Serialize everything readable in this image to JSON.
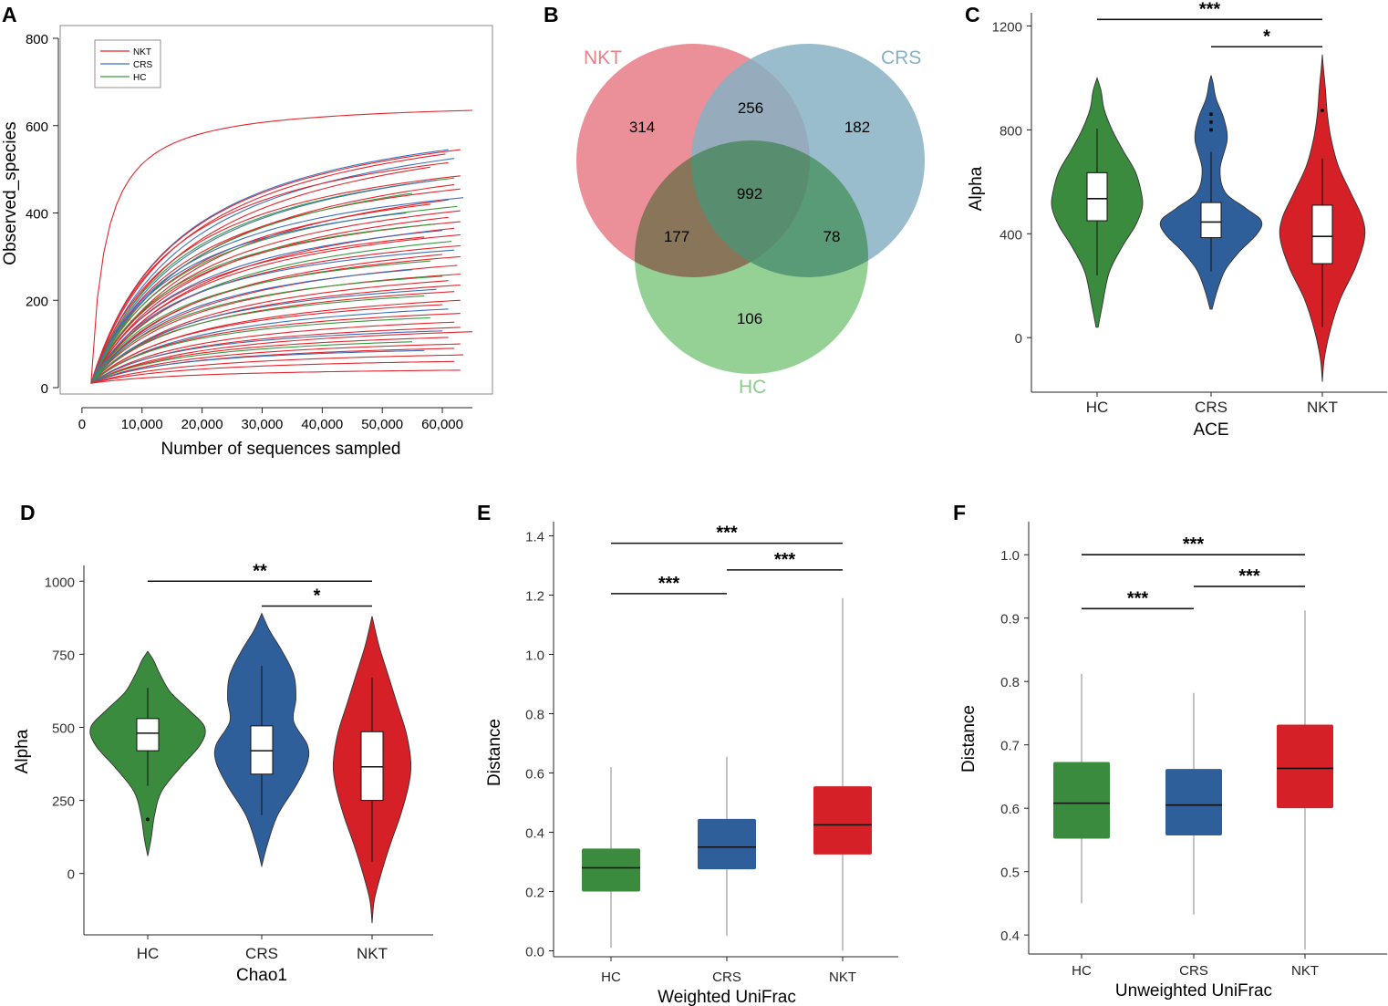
{
  "colors": {
    "HC": "#3a8b3d",
    "CRS": "#2f5f9a",
    "NKT": "#d62027",
    "venn_nkt": "#e8808a",
    "venn_crs": "#87b1c3",
    "venn_hc": "#8acc8a",
    "rare_nkt": "#e3262d",
    "rare_crs": "#3c6fbf",
    "rare_hc": "#3a9a40"
  },
  "chart_data": [
    {
      "panel": "A",
      "type": "line",
      "xlabel": "Number of sequences sampled",
      "ylabel": "Observed_species",
      "xlim": [
        0,
        65000
      ],
      "ylim": [
        0,
        800
      ],
      "xticks": [
        0,
        10000,
        20000,
        30000,
        40000,
        50000,
        60000
      ],
      "xtick_labels": [
        "0",
        "10,000",
        "20,000",
        "30,000",
        "40,000",
        "50,000",
        "60,000"
      ],
      "yticks": [
        0,
        200,
        400,
        600,
        800
      ],
      "ytick_labels": [
        "0",
        "200",
        "400",
        "600",
        "800"
      ],
      "legend": [
        "NKT",
        "CRS",
        "HC"
      ],
      "legend_position": "top-left",
      "curve_start": [
        1500,
        10
      ],
      "series": [
        {
          "name": "NKT",
          "x_end": 65000,
          "y_end": 635,
          "half": 2500
        },
        {
          "name": "CRS",
          "x_end": 61000,
          "y_end": 545,
          "half": 15000
        },
        {
          "name": "NKT",
          "x_end": 63000,
          "y_end": 545,
          "half": 15000
        },
        {
          "name": "NKT",
          "x_end": 60500,
          "y_end": 535,
          "half": 16000
        },
        {
          "name": "CRS",
          "x_end": 62000,
          "y_end": 525,
          "half": 17000
        },
        {
          "name": "NKT",
          "x_end": 61000,
          "y_end": 515,
          "half": 14000
        },
        {
          "name": "NKT",
          "x_end": 58000,
          "y_end": 505,
          "half": 18000
        },
        {
          "name": "HC",
          "x_end": 62000,
          "y_end": 480,
          "half": 16000
        },
        {
          "name": "NKT",
          "x_end": 63000,
          "y_end": 485,
          "half": 15000
        },
        {
          "name": "CRS",
          "x_end": 59000,
          "y_end": 475,
          "half": 17000
        },
        {
          "name": "NKT",
          "x_end": 62000,
          "y_end": 465,
          "half": 19000
        },
        {
          "name": "NKT",
          "x_end": 63000,
          "y_end": 455,
          "half": 16000
        },
        {
          "name": "HC",
          "x_end": 55000,
          "y_end": 445,
          "half": 18000
        },
        {
          "name": "CRS",
          "x_end": 63500,
          "y_end": 435,
          "half": 15000
        },
        {
          "name": "NKT",
          "x_end": 61000,
          "y_end": 430,
          "half": 20000
        },
        {
          "name": "NKT",
          "x_end": 58000,
          "y_end": 420,
          "half": 17000
        },
        {
          "name": "HC",
          "x_end": 62500,
          "y_end": 415,
          "half": 16000
        },
        {
          "name": "NKT",
          "x_end": 63000,
          "y_end": 405,
          "half": 18000
        },
        {
          "name": "CRS",
          "x_end": 54000,
          "y_end": 400,
          "half": 14000
        },
        {
          "name": "NKT",
          "x_end": 61000,
          "y_end": 390,
          "half": 19000
        },
        {
          "name": "NKT",
          "x_end": 63000,
          "y_end": 380,
          "half": 16000
        },
        {
          "name": "HC",
          "x_end": 59000,
          "y_end": 375,
          "half": 15000
        },
        {
          "name": "NKT",
          "x_end": 62000,
          "y_end": 365,
          "half": 20000
        },
        {
          "name": "CRS",
          "x_end": 60000,
          "y_end": 360,
          "half": 17000
        },
        {
          "name": "NKT",
          "x_end": 63000,
          "y_end": 350,
          "half": 18000
        },
        {
          "name": "NKT",
          "x_end": 57000,
          "y_end": 345,
          "half": 16000
        },
        {
          "name": "HC",
          "x_end": 61500,
          "y_end": 335,
          "half": 19000
        },
        {
          "name": "NKT",
          "x_end": 63000,
          "y_end": 325,
          "half": 17000
        },
        {
          "name": "CRS",
          "x_end": 62000,
          "y_end": 315,
          "half": 15000
        },
        {
          "name": "NKT",
          "x_end": 60000,
          "y_end": 305,
          "half": 20000
        },
        {
          "name": "NKT",
          "x_end": 63000,
          "y_end": 300,
          "half": 18000
        },
        {
          "name": "HC",
          "x_end": 58000,
          "y_end": 290,
          "half": 16000
        },
        {
          "name": "NKT",
          "x_end": 62500,
          "y_end": 280,
          "half": 19000
        },
        {
          "name": "CRS",
          "x_end": 55000,
          "y_end": 270,
          "half": 17000
        },
        {
          "name": "NKT",
          "x_end": 63000,
          "y_end": 260,
          "half": 18000
        },
        {
          "name": "HC",
          "x_end": 60000,
          "y_end": 255,
          "half": 16000
        },
        {
          "name": "NKT",
          "x_end": 61000,
          "y_end": 245,
          "half": 20000
        },
        {
          "name": "NKT",
          "x_end": 63000,
          "y_end": 235,
          "half": 19000
        },
        {
          "name": "CRS",
          "x_end": 59000,
          "y_end": 225,
          "half": 17000
        },
        {
          "name": "NKT",
          "x_end": 62000,
          "y_end": 220,
          "half": 18000
        },
        {
          "name": "HC",
          "x_end": 57000,
          "y_end": 210,
          "half": 16000
        },
        {
          "name": "NKT",
          "x_end": 63000,
          "y_end": 200,
          "half": 20000
        },
        {
          "name": "NKT",
          "x_end": 60000,
          "y_end": 190,
          "half": 18000
        },
        {
          "name": "CRS",
          "x_end": 61000,
          "y_end": 180,
          "half": 19000
        },
        {
          "name": "NKT",
          "x_end": 63000,
          "y_end": 170,
          "half": 17000
        },
        {
          "name": "HC",
          "x_end": 58000,
          "y_end": 160,
          "half": 16000
        },
        {
          "name": "NKT",
          "x_end": 62000,
          "y_end": 150,
          "half": 19000
        },
        {
          "name": "NKT",
          "x_end": 63000,
          "y_end": 138,
          "half": 18000
        },
        {
          "name": "CRS",
          "x_end": 60000,
          "y_end": 130,
          "half": 16000
        },
        {
          "name": "NKT",
          "x_end": 65000,
          "y_end": 128,
          "half": 20000
        },
        {
          "name": "NKT",
          "x_end": 61000,
          "y_end": 115,
          "half": 18000
        },
        {
          "name": "HC",
          "x_end": 55000,
          "y_end": 105,
          "half": 17000
        },
        {
          "name": "NKT",
          "x_end": 63000,
          "y_end": 100,
          "half": 19000
        },
        {
          "name": "NKT",
          "x_end": 62000,
          "y_end": 90,
          "half": 18000
        },
        {
          "name": "CRS",
          "x_end": 57000,
          "y_end": 85,
          "half": 16000
        },
        {
          "name": "NKT",
          "x_end": 63500,
          "y_end": 75,
          "half": 20000
        },
        {
          "name": "NKT",
          "x_end": 62000,
          "y_end": 60,
          "half": 19000
        },
        {
          "name": "NKT",
          "x_end": 63000,
          "y_end": 40,
          "half": 20000
        }
      ]
    },
    {
      "panel": "B",
      "type": "venn",
      "sets": [
        "NKT",
        "CRS",
        "HC"
      ],
      "regions": {
        "NKT_only": 314,
        "CRS_only": 182,
        "HC_only": 106,
        "NKT_CRS": 256,
        "NKT_HC": 177,
        "CRS_HC": 78,
        "all": 992
      }
    },
    {
      "panel": "C",
      "type": "violin",
      "xlabel": "ACE",
      "ylabel": "Alpha",
      "ylim": [
        -210,
        1300
      ],
      "yticks": [
        0,
        400,
        800,
        1200
      ],
      "ytick_labels": [
        "0",
        "400",
        "800",
        "1200"
      ],
      "categories": [
        "HC",
        "CRS",
        "NKT"
      ],
      "groups": [
        {
          "name": "HC",
          "violin_min": 40,
          "violin_max": 1000,
          "q1": 450,
          "median": 535,
          "q3": 635,
          "whisker_low": 240,
          "whisker_high": 805,
          "outliers": [],
          "profile": [
            [
              40,
              0.01
            ],
            [
              120,
              0.05
            ],
            [
              250,
              0.12
            ],
            [
              350,
              0.25
            ],
            [
              430,
              0.38
            ],
            [
              500,
              0.45
            ],
            [
              560,
              0.44
            ],
            [
              640,
              0.38
            ],
            [
              720,
              0.26
            ],
            [
              800,
              0.15
            ],
            [
              880,
              0.07
            ],
            [
              950,
              0.04
            ],
            [
              1000,
              0.0
            ]
          ]
        },
        {
          "name": "CRS",
          "violin_min": 110,
          "violin_max": 1010,
          "q1": 385,
          "median": 445,
          "q3": 520,
          "whisker_low": 255,
          "whisker_high": 715,
          "outliers": [
            800,
            830,
            860
          ],
          "profile": [
            [
              110,
              0.01
            ],
            [
              180,
              0.06
            ],
            [
              260,
              0.14
            ],
            [
              330,
              0.28
            ],
            [
              400,
              0.46
            ],
            [
              450,
              0.5
            ],
            [
              500,
              0.34
            ],
            [
              560,
              0.14
            ],
            [
              650,
              0.09
            ],
            [
              760,
              0.16
            ],
            [
              840,
              0.13
            ],
            [
              920,
              0.05
            ],
            [
              980,
              0.02
            ],
            [
              1010,
              0.0
            ]
          ]
        },
        {
          "name": "NKT",
          "violin_min": -170,
          "violin_max": 1090,
          "q1": 285,
          "median": 390,
          "q3": 510,
          "whisker_low": 40,
          "whisker_high": 690,
          "outliers": [
            875
          ],
          "profile": [
            [
              -170,
              0.0
            ],
            [
              -80,
              0.02
            ],
            [
              30,
              0.08
            ],
            [
              150,
              0.18
            ],
            [
              270,
              0.33
            ],
            [
              380,
              0.42
            ],
            [
              460,
              0.4
            ],
            [
              560,
              0.28
            ],
            [
              660,
              0.16
            ],
            [
              760,
              0.09
            ],
            [
              860,
              0.05
            ],
            [
              960,
              0.03
            ],
            [
              1040,
              0.01
            ],
            [
              1090,
              0.0
            ]
          ]
        }
      ],
      "significance": [
        {
          "from": "HC",
          "to": "NKT",
          "y": 1225,
          "label": "***"
        },
        {
          "from": "CRS",
          "to": "NKT",
          "y": 1120,
          "label": "*"
        }
      ]
    },
    {
      "panel": "D",
      "type": "violin",
      "xlabel": "Chao1",
      "ylabel": "Alpha",
      "ylim": [
        -210,
        1110
      ],
      "yticks": [
        0,
        250,
        500,
        750,
        1000
      ],
      "ytick_labels": [
        "0",
        "250",
        "500",
        "750",
        "1000"
      ],
      "categories": [
        "HC",
        "CRS",
        "NKT"
      ],
      "groups": [
        {
          "name": "HC",
          "violin_min": 60,
          "violin_max": 760,
          "q1": 420,
          "median": 480,
          "q3": 530,
          "whisker_low": 300,
          "whisker_high": 635,
          "outliers": [
            185
          ],
          "profile": [
            [
              60,
              0.0
            ],
            [
              120,
              0.03
            ],
            [
              200,
              0.06
            ],
            [
              280,
              0.12
            ],
            [
              360,
              0.28
            ],
            [
              440,
              0.46
            ],
            [
              500,
              0.5
            ],
            [
              560,
              0.36
            ],
            [
              620,
              0.2
            ],
            [
              680,
              0.11
            ],
            [
              730,
              0.05
            ],
            [
              760,
              0.0
            ]
          ]
        },
        {
          "name": "CRS",
          "violin_min": 25,
          "violin_max": 890,
          "q1": 340,
          "median": 420,
          "q3": 505,
          "whisker_low": 200,
          "whisker_high": 710,
          "outliers": [],
          "profile": [
            [
              25,
              0.0
            ],
            [
              100,
              0.05
            ],
            [
              200,
              0.14
            ],
            [
              300,
              0.3
            ],
            [
              380,
              0.4
            ],
            [
              440,
              0.4
            ],
            [
              520,
              0.28
            ],
            [
              600,
              0.3
            ],
            [
              680,
              0.28
            ],
            [
              760,
              0.18
            ],
            [
              830,
              0.07
            ],
            [
              890,
              0.0
            ]
          ]
        },
        {
          "name": "NKT",
          "violin_min": -170,
          "violin_max": 880,
          "q1": 250,
          "median": 365,
          "q3": 485,
          "whisker_low": 40,
          "whisker_high": 670,
          "outliers": [],
          "profile": [
            [
              -170,
              0.0
            ],
            [
              -90,
              0.02
            ],
            [
              0,
              0.08
            ],
            [
              100,
              0.16
            ],
            [
              200,
              0.25
            ],
            [
              300,
              0.32
            ],
            [
              380,
              0.34
            ],
            [
              480,
              0.3
            ],
            [
              580,
              0.22
            ],
            [
              680,
              0.14
            ],
            [
              780,
              0.06
            ],
            [
              880,
              0.0
            ]
          ]
        }
      ],
      "significance": [
        {
          "from": "HC",
          "to": "NKT",
          "y": 1000,
          "label": "**"
        },
        {
          "from": "CRS",
          "to": "NKT",
          "y": 915,
          "label": "*"
        }
      ]
    },
    {
      "panel": "E",
      "type": "box",
      "xlabel": "Weighted UniFrac",
      "ylabel": "Distance",
      "ylim": [
        -0.02,
        1.5
      ],
      "yticks": [
        0.0,
        0.2,
        0.4,
        0.6,
        0.8,
        1.0,
        1.2,
        1.4
      ],
      "ytick_labels": [
        "0.0",
        "0.2",
        "0.4",
        "0.6",
        "0.8",
        "1.0",
        "1.2",
        "1.4"
      ],
      "categories": [
        "HC",
        "CRS",
        "NKT"
      ],
      "groups": [
        {
          "name": "HC",
          "q1": 0.2,
          "median": 0.28,
          "q3": 0.345,
          "whisker_low": 0.01,
          "whisker_high": 0.62
        },
        {
          "name": "CRS",
          "q1": 0.275,
          "median": 0.35,
          "q3": 0.445,
          "whisker_low": 0.05,
          "whisker_high": 0.655
        },
        {
          "name": "NKT",
          "q1": 0.325,
          "median": 0.425,
          "q3": 0.555,
          "whisker_low": 0.0,
          "whisker_high": 1.19
        }
      ],
      "significance": [
        {
          "from": "HC",
          "to": "NKT",
          "y": 1.375,
          "label": "***"
        },
        {
          "from": "CRS",
          "to": "NKT",
          "y": 1.285,
          "label": "***"
        },
        {
          "from": "HC",
          "to": "CRS",
          "y": 1.205,
          "label": "***"
        }
      ]
    },
    {
      "panel": "F",
      "type": "box",
      "xlabel": "Unweighted UniFrac",
      "ylabel": "Distance",
      "ylim": [
        0.37,
        1.055
      ],
      "yticks": [
        0.4,
        0.5,
        0.6,
        0.7,
        0.8,
        0.9,
        1.0
      ],
      "ytick_labels": [
        "0.4",
        "0.5",
        "0.6",
        "0.7",
        "0.8",
        "0.9",
        "1.0"
      ],
      "categories": [
        "HC",
        "CRS",
        "NKT"
      ],
      "groups": [
        {
          "name": "HC",
          "q1": 0.552,
          "median": 0.608,
          "q3": 0.673,
          "whisker_low": 0.45,
          "whisker_high": 0.812
        },
        {
          "name": "CRS",
          "q1": 0.557,
          "median": 0.605,
          "q3": 0.662,
          "whisker_low": 0.432,
          "whisker_high": 0.782
        },
        {
          "name": "NKT",
          "q1": 0.6,
          "median": 0.663,
          "q3": 0.732,
          "whisker_low": 0.377,
          "whisker_high": 0.912
        }
      ],
      "significance": [
        {
          "from": "HC",
          "to": "NKT",
          "y": 1.0,
          "label": "***"
        },
        {
          "from": "CRS",
          "to": "NKT",
          "y": 0.95,
          "label": "***"
        },
        {
          "from": "HC",
          "to": "CRS",
          "y": 0.915,
          "label": "***"
        }
      ]
    }
  ]
}
